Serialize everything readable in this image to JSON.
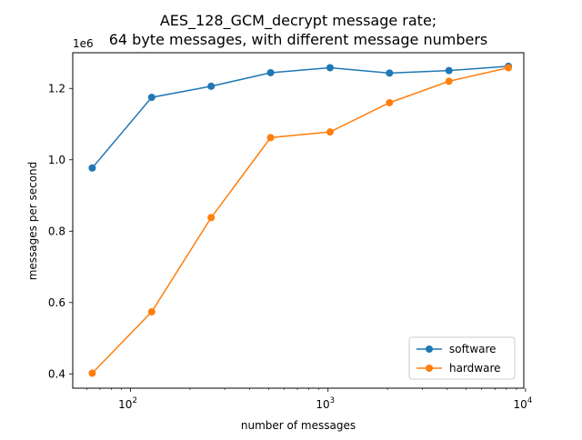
{
  "chart_data": {
    "type": "line",
    "title_line1": "AES_128_GCM_decrypt message rate;",
    "title_line2": "64 byte messages, with different message numbers",
    "xlabel": "number of messages",
    "ylabel": "messages per second",
    "y_offset_label": "1e6",
    "x_scale": "log",
    "xlim": [
      51,
      9800
    ],
    "ylim": [
      360000,
      1300000
    ],
    "x_ticks": [
      {
        "value": 100,
        "base": "10",
        "exp": "2"
      },
      {
        "value": 1000,
        "base": "10",
        "exp": "3"
      },
      {
        "value": 10000,
        "base": "10",
        "exp": "4"
      }
    ],
    "y_ticks": [
      {
        "value": 400000,
        "label": "0.4"
      },
      {
        "value": 600000,
        "label": "0.6"
      },
      {
        "value": 800000,
        "label": "0.8"
      },
      {
        "value": 1000000,
        "label": "1.0"
      },
      {
        "value": 1200000,
        "label": "1.2"
      }
    ],
    "x": [
      64,
      128,
      256,
      512,
      1024,
      2048,
      4096,
      8192
    ],
    "series": [
      {
        "name": "software",
        "color": "#1f77b4",
        "values": [
          977000,
          1175000,
          1206000,
          1244000,
          1258000,
          1243000,
          1250000,
          1262000
        ]
      },
      {
        "name": "hardware",
        "color": "#ff7f0e",
        "values": [
          402000,
          574000,
          838000,
          1062000,
          1078000,
          1160000,
          1220000,
          1258000
        ]
      }
    ],
    "grid": false,
    "legend_position": "lower-right"
  }
}
